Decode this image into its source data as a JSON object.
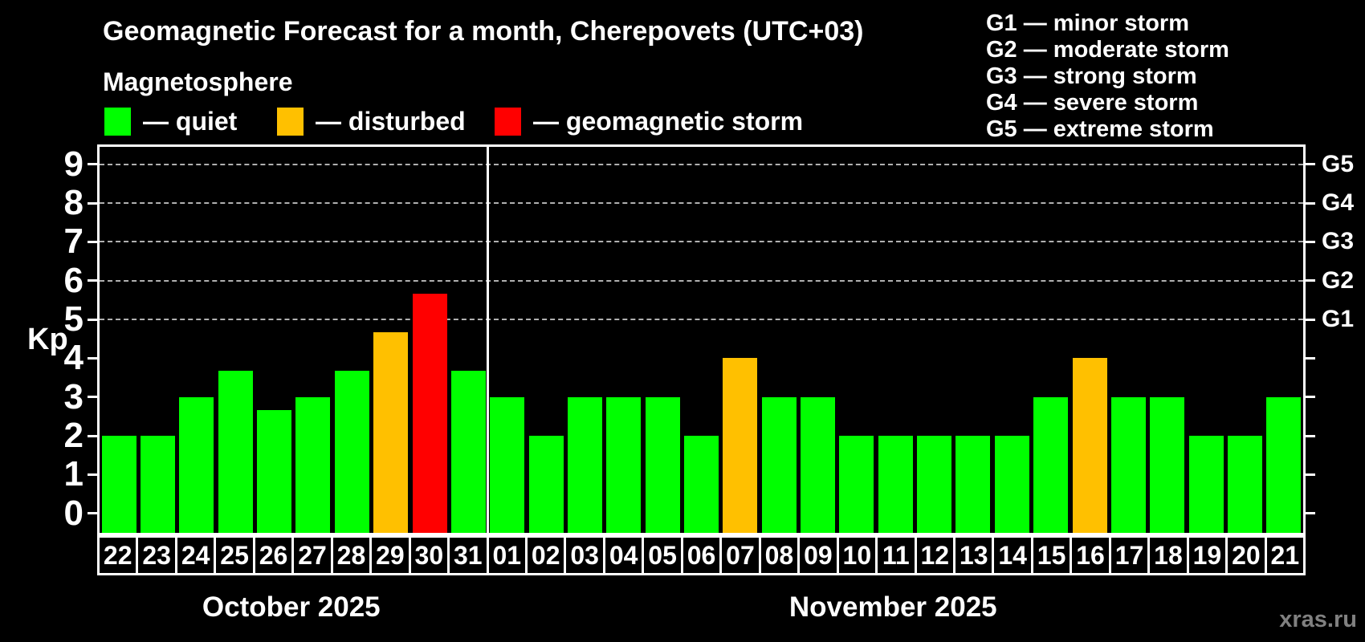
{
  "header": {
    "title": "Geomagnetic Forecast for a month, Cherepovets (UTC+03)",
    "subtitle": "Magnetosphere"
  },
  "legend": {
    "items": [
      {
        "name": "quiet",
        "label": "— quiet",
        "color": "#00ff00"
      },
      {
        "name": "disturbed",
        "label": "— disturbed",
        "color": "#ffc000"
      },
      {
        "name": "storm",
        "label": "— geomagnetic storm",
        "color": "#ff0000"
      }
    ]
  },
  "gscale": {
    "items": [
      "G1 — minor storm",
      "G2 — moderate storm",
      "G3 — strong storm",
      "G4 — severe storm",
      "G5 — extreme storm"
    ]
  },
  "watermark": "xras.ru",
  "chart_data": {
    "type": "bar",
    "ylabel": "Kp",
    "ylim": [
      -0.5,
      9.45
    ],
    "yticks": [
      0,
      1,
      2,
      3,
      4,
      5,
      6,
      7,
      8,
      9
    ],
    "grid_kp_levels": [
      5,
      6,
      7,
      8,
      9
    ],
    "right_axis": [
      {
        "kp": 5,
        "label": "G1"
      },
      {
        "kp": 6,
        "label": "G2"
      },
      {
        "kp": 7,
        "label": "G3"
      },
      {
        "kp": 8,
        "label": "G4"
      },
      {
        "kp": 9,
        "label": "G5"
      }
    ],
    "status_colors": {
      "quiet": "#00ff00",
      "disturbed": "#ffc000",
      "storm": "#ff0000"
    },
    "months": [
      {
        "label": "October 2025",
        "days": [
          {
            "date": "22",
            "kp": 2,
            "status": "quiet"
          },
          {
            "date": "23",
            "kp": 2,
            "status": "quiet"
          },
          {
            "date": "24",
            "kp": 3,
            "status": "quiet"
          },
          {
            "date": "25",
            "kp": 3.67,
            "status": "quiet"
          },
          {
            "date": "26",
            "kp": 2.67,
            "status": "quiet"
          },
          {
            "date": "27",
            "kp": 3,
            "status": "quiet"
          },
          {
            "date": "28",
            "kp": 3.67,
            "status": "quiet"
          },
          {
            "date": "29",
            "kp": 4.67,
            "status": "disturbed"
          },
          {
            "date": "30",
            "kp": 5.67,
            "status": "storm"
          },
          {
            "date": "31",
            "kp": 3.67,
            "status": "quiet"
          }
        ]
      },
      {
        "label": "November 2025",
        "days": [
          {
            "date": "01",
            "kp": 3,
            "status": "quiet"
          },
          {
            "date": "02",
            "kp": 2,
            "status": "quiet"
          },
          {
            "date": "03",
            "kp": 3,
            "status": "quiet"
          },
          {
            "date": "04",
            "kp": 3,
            "status": "quiet"
          },
          {
            "date": "05",
            "kp": 3,
            "status": "quiet"
          },
          {
            "date": "06",
            "kp": 2,
            "status": "quiet"
          },
          {
            "date": "07",
            "kp": 4,
            "status": "disturbed"
          },
          {
            "date": "08",
            "kp": 3,
            "status": "quiet"
          },
          {
            "date": "09",
            "kp": 3,
            "status": "quiet"
          },
          {
            "date": "10",
            "kp": 2,
            "status": "quiet"
          },
          {
            "date": "11",
            "kp": 2,
            "status": "quiet"
          },
          {
            "date": "12",
            "kp": 2,
            "status": "quiet"
          },
          {
            "date": "13",
            "kp": 2,
            "status": "quiet"
          },
          {
            "date": "14",
            "kp": 2,
            "status": "quiet"
          },
          {
            "date": "15",
            "kp": 3,
            "status": "quiet"
          },
          {
            "date": "16",
            "kp": 4,
            "status": "disturbed"
          },
          {
            "date": "17",
            "kp": 3,
            "status": "quiet"
          },
          {
            "date": "18",
            "kp": 3,
            "status": "quiet"
          },
          {
            "date": "19",
            "kp": 2,
            "status": "quiet"
          },
          {
            "date": "20",
            "kp": 2,
            "status": "quiet"
          },
          {
            "date": "21",
            "kp": 3,
            "status": "quiet"
          }
        ]
      }
    ]
  }
}
